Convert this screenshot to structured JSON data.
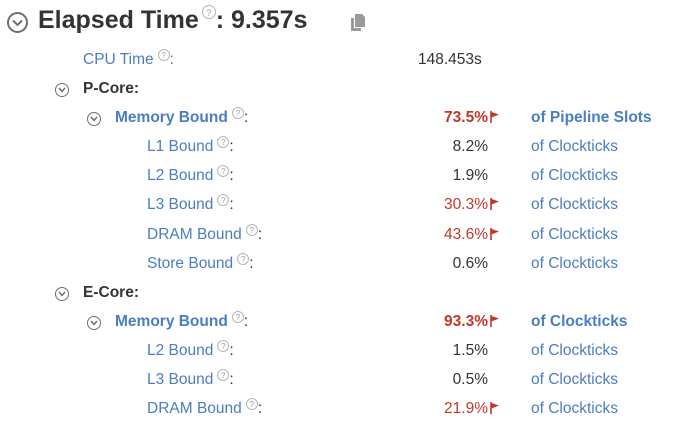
{
  "header": {
    "label": "Elapsed Time",
    "value": ": 9.357s"
  },
  "cpu_time": {
    "label": "CPU Time",
    "value": "148.453s"
  },
  "p_core": {
    "label": "P-Core:",
    "memory_bound": {
      "label": "Memory Bound",
      "value": "73.5%",
      "unit": "of Pipeline Slots"
    },
    "rows": [
      {
        "label": "L1 Bound",
        "value": "8.2%",
        "unit": "of Clockticks"
      },
      {
        "label": "L2 Bound",
        "value": "1.9%",
        "unit": "of Clockticks"
      },
      {
        "label": "L3 Bound",
        "value": "30.3%",
        "unit": "of Clockticks"
      },
      {
        "label": "DRAM Bound",
        "value": "43.6%",
        "unit": "of Clockticks"
      },
      {
        "label": "Store Bound",
        "value": "0.6%",
        "unit": "of Clockticks"
      }
    ]
  },
  "e_core": {
    "label": "E-Core:",
    "memory_bound": {
      "label": "Memory Bound",
      "value": "93.3%",
      "unit": "of Clockticks"
    },
    "rows": [
      {
        "label": "L2 Bound",
        "value": "1.5%",
        "unit": "of Clockticks"
      },
      {
        "label": "L3 Bound",
        "value": "0.5%",
        "unit": "of Clockticks"
      },
      {
        "label": "DRAM Bound",
        "value": "21.9%",
        "unit": "of Clockticks"
      }
    ]
  },
  "help_glyph": "?",
  "colors": {
    "link": "#4a7dc1",
    "flagged": "#c0392b",
    "text": "#333333"
  }
}
